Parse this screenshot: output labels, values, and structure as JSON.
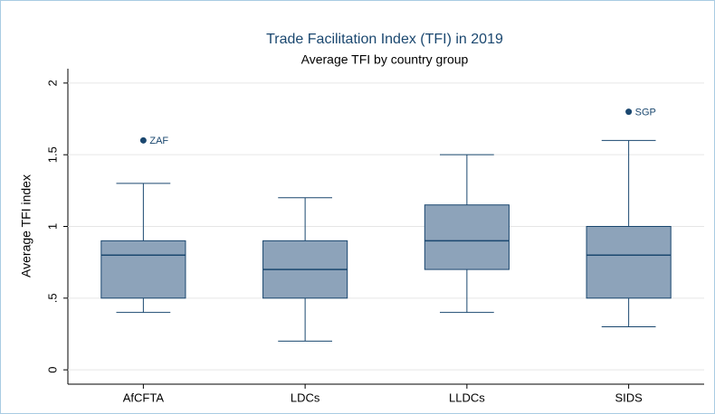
{
  "chart_data": {
    "type": "box",
    "title": "Trade Facilitation Index (TFI) in 2019",
    "subtitle": "Average TFI by country group",
    "ylabel": "Average TFI index",
    "categories": [
      "AfCFTA",
      "LDCs",
      "LLDCs",
      "SIDS"
    ],
    "boxes": [
      {
        "whisker_low": 0.4,
        "q1": 0.5,
        "median": 0.8,
        "q3": 0.9,
        "whisker_high": 1.3,
        "outliers": [
          {
            "value": 1.6,
            "label": "ZAF"
          }
        ]
      },
      {
        "whisker_low": 0.2,
        "q1": 0.5,
        "median": 0.7,
        "q3": 0.9,
        "whisker_high": 1.2,
        "outliers": []
      },
      {
        "whisker_low": 0.4,
        "q1": 0.7,
        "median": 0.9,
        "q3": 1.15,
        "whisker_high": 1.5,
        "outliers": []
      },
      {
        "whisker_low": 0.3,
        "q1": 0.5,
        "median": 0.8,
        "q3": 1.0,
        "whisker_high": 1.6,
        "outliers": [
          {
            "value": 1.8,
            "label": "SGP"
          }
        ]
      }
    ],
    "color": "#8da3ba",
    "edge_color": "#1a476f",
    "ylim": [
      -0.1,
      2.1
    ],
    "yticks": [
      0,
      {
        "value": 0.5,
        "label": ".5"
      },
      1,
      1.5,
      2
    ],
    "grid": true
  }
}
